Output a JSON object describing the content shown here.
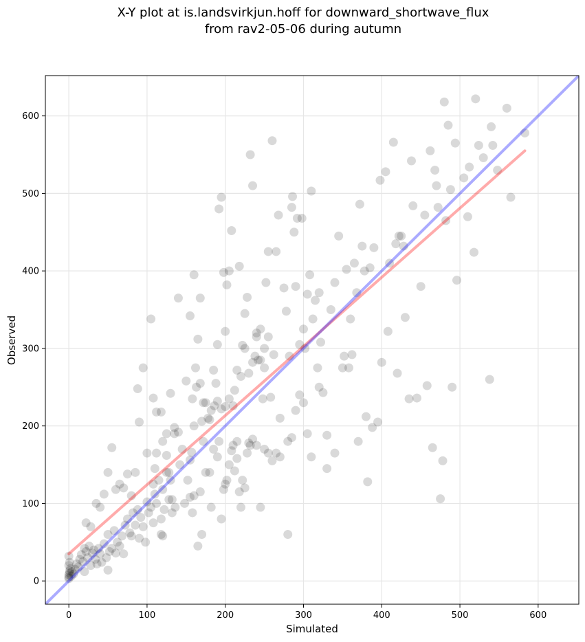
{
  "chart_data": {
    "type": "scatter",
    "title_line1": "X-Y plot at is.landsvirkjun.hoff for downward_shortwave_flux",
    "title_line2": "from rav2-05-06 during autumn",
    "xlabel": "Simulated",
    "ylabel": "Observed",
    "xlim": [
      -30,
      652
    ],
    "ylim": [
      -30,
      652
    ],
    "xticks": [
      0,
      100,
      200,
      300,
      400,
      500,
      600
    ],
    "yticks": [
      0,
      100,
      200,
      300,
      400,
      500,
      600
    ],
    "grid": true,
    "colors": {
      "points": "#000000",
      "fit_line": "#ff0000",
      "identity_line": "#0000ff"
    },
    "identity_line": {
      "x": [
        -30,
        652
      ],
      "y": [
        -30,
        652
      ]
    },
    "fit_line": {
      "x": [
        0,
        583
      ],
      "y": [
        35,
        555
      ]
    },
    "points": [
      [
        0,
        3
      ],
      [
        0,
        5
      ],
      [
        0,
        8
      ],
      [
        1,
        10
      ],
      [
        1,
        13
      ],
      [
        2,
        16
      ],
      [
        0,
        20
      ],
      [
        1,
        24
      ],
      [
        0,
        32
      ],
      [
        3,
        6
      ],
      [
        4,
        12
      ],
      [
        6,
        9
      ],
      [
        8,
        15
      ],
      [
        10,
        22
      ],
      [
        12,
        18
      ],
      [
        14,
        28
      ],
      [
        16,
        34
      ],
      [
        18,
        25
      ],
      [
        20,
        12
      ],
      [
        20,
        42
      ],
      [
        22,
        38
      ],
      [
        24,
        30
      ],
      [
        26,
        45
      ],
      [
        28,
        20
      ],
      [
        30,
        36
      ],
      [
        32,
        40
      ],
      [
        34,
        28
      ],
      [
        36,
        22
      ],
      [
        38,
        42
      ],
      [
        40,
        35
      ],
      [
        42,
        24
      ],
      [
        45,
        48
      ],
      [
        48,
        30
      ],
      [
        50,
        14
      ],
      [
        50,
        60
      ],
      [
        52,
        38
      ],
      [
        55,
        42
      ],
      [
        58,
        65
      ],
      [
        60,
        36
      ],
      [
        62,
        50
      ],
      [
        65,
        45
      ],
      [
        68,
        58
      ],
      [
        70,
        35
      ],
      [
        72,
        72
      ],
      [
        75,
        80
      ],
      [
        78,
        62
      ],
      [
        80,
        58
      ],
      [
        82,
        88
      ],
      [
        85,
        72
      ],
      [
        88,
        92
      ],
      [
        90,
        55
      ],
      [
        92,
        82
      ],
      [
        95,
        70
      ],
      [
        98,
        50
      ],
      [
        100,
        102
      ],
      [
        102,
        88
      ],
      [
        105,
        95
      ],
      [
        108,
        75
      ],
      [
        110,
        112
      ],
      [
        112,
        100
      ],
      [
        115,
        130
      ],
      [
        118,
        80
      ],
      [
        120,
        118
      ],
      [
        122,
        92
      ],
      [
        125,
        140
      ],
      [
        128,
        105
      ],
      [
        130,
        130
      ],
      [
        132,
        88
      ],
      [
        135,
        190
      ],
      [
        140,
        192
      ],
      [
        22,
        75
      ],
      [
        28,
        70
      ],
      [
        35,
        100
      ],
      [
        40,
        95
      ],
      [
        45,
        112
      ],
      [
        50,
        140
      ],
      [
        55,
        172
      ],
      [
        60,
        118
      ],
      [
        65,
        125
      ],
      [
        70,
        120
      ],
      [
        75,
        138
      ],
      [
        80,
        110
      ],
      [
        85,
        140
      ],
      [
        88,
        248
      ],
      [
        90,
        205
      ],
      [
        95,
        275
      ],
      [
        100,
        165
      ],
      [
        105,
        338
      ],
      [
        108,
        236
      ],
      [
        110,
        145
      ],
      [
        112,
        218
      ],
      [
        118,
        218
      ],
      [
        120,
        180
      ],
      [
        125,
        190
      ],
      [
        130,
        242
      ],
      [
        135,
        198
      ],
      [
        140,
        365
      ],
      [
        145,
        170
      ],
      [
        150,
        258
      ],
      [
        155,
        342
      ],
      [
        158,
        235
      ],
      [
        160,
        395
      ],
      [
        162,
        275
      ],
      [
        165,
        312
      ],
      [
        168,
        365
      ],
      [
        170,
        206
      ],
      [
        172,
        180
      ],
      [
        175,
        230
      ],
      [
        180,
        208
      ],
      [
        185,
        272
      ],
      [
        188,
        255
      ],
      [
        190,
        305
      ],
      [
        192,
        480
      ],
      [
        195,
        495
      ],
      [
        198,
        398
      ],
      [
        200,
        322
      ],
      [
        202,
        382
      ],
      [
        205,
        400
      ],
      [
        208,
        452
      ],
      [
        210,
        226
      ],
      [
        212,
        246
      ],
      [
        215,
        272
      ],
      [
        218,
        406
      ],
      [
        220,
        264
      ],
      [
        222,
        304
      ],
      [
        225,
        345
      ],
      [
        228,
        366
      ],
      [
        232,
        550
      ],
      [
        235,
        510
      ],
      [
        238,
        290
      ],
      [
        240,
        315
      ],
      [
        242,
        285
      ],
      [
        245,
        325
      ],
      [
        248,
        235
      ],
      [
        250,
        300
      ],
      [
        252,
        385
      ],
      [
        255,
        425
      ],
      [
        258,
        237
      ],
      [
        260,
        568
      ],
      [
        262,
        292
      ],
      [
        265,
        425
      ],
      [
        268,
        472
      ],
      [
        270,
        210
      ],
      [
        275,
        378
      ],
      [
        278,
        348
      ],
      [
        280,
        180
      ],
      [
        282,
        290
      ],
      [
        285,
        482
      ],
      [
        286,
        496
      ],
      [
        288,
        450
      ],
      [
        290,
        380
      ],
      [
        292,
        468
      ],
      [
        295,
        305
      ],
      [
        298,
        468
      ],
      [
        300,
        325
      ],
      [
        302,
        300
      ],
      [
        305,
        370
      ],
      [
        308,
        395
      ],
      [
        310,
        503
      ],
      [
        312,
        338
      ],
      [
        315,
        362
      ],
      [
        318,
        275
      ],
      [
        320,
        372
      ],
      [
        322,
        308
      ],
      [
        325,
        243
      ],
      [
        330,
        188
      ],
      [
        335,
        350
      ],
      [
        340,
        385
      ],
      [
        345,
        445
      ],
      [
        350,
        275
      ],
      [
        352,
        290
      ],
      [
        355,
        402
      ],
      [
        358,
        275
      ],
      [
        360,
        338
      ],
      [
        362,
        292
      ],
      [
        365,
        410
      ],
      [
        368,
        372
      ],
      [
        370,
        180
      ],
      [
        372,
        486
      ],
      [
        375,
        432
      ],
      [
        378,
        400
      ],
      [
        380,
        212
      ],
      [
        382,
        128
      ],
      [
        385,
        404
      ],
      [
        388,
        198
      ],
      [
        390,
        430
      ],
      [
        395,
        205
      ],
      [
        398,
        517
      ],
      [
        400,
        282
      ],
      [
        405,
        528
      ],
      [
        408,
        322
      ],
      [
        410,
        410
      ],
      [
        415,
        566
      ],
      [
        418,
        435
      ],
      [
        420,
        268
      ],
      [
        422,
        445
      ],
      [
        425,
        445
      ],
      [
        428,
        432
      ],
      [
        430,
        340
      ],
      [
        435,
        235
      ],
      [
        438,
        542
      ],
      [
        440,
        484
      ],
      [
        445,
        236
      ],
      [
        450,
        380
      ],
      [
        455,
        472
      ],
      [
        458,
        252
      ],
      [
        462,
        555
      ],
      [
        465,
        172
      ],
      [
        468,
        530
      ],
      [
        470,
        510
      ],
      [
        472,
        482
      ],
      [
        475,
        106
      ],
      [
        478,
        155
      ],
      [
        480,
        618
      ],
      [
        482,
        465
      ],
      [
        485,
        588
      ],
      [
        488,
        505
      ],
      [
        490,
        250
      ],
      [
        494,
        565
      ],
      [
        496,
        388
      ],
      [
        505,
        520
      ],
      [
        510,
        470
      ],
      [
        512,
        534
      ],
      [
        518,
        424
      ],
      [
        520,
        622
      ],
      [
        524,
        562
      ],
      [
        530,
        546
      ],
      [
        538,
        260
      ],
      [
        540,
        586
      ],
      [
        542,
        562
      ],
      [
        548,
        530
      ],
      [
        560,
        610
      ],
      [
        565,
        495
      ],
      [
        583,
        578
      ],
      [
        155,
        108
      ],
      [
        158,
        88
      ],
      [
        160,
        110
      ],
      [
        165,
        45
      ],
      [
        168,
        115
      ],
      [
        170,
        60
      ],
      [
        175,
        140
      ],
      [
        180,
        140
      ],
      [
        182,
        95
      ],
      [
        185,
        170
      ],
      [
        190,
        160
      ],
      [
        192,
        180
      ],
      [
        195,
        80
      ],
      [
        198,
        118
      ],
      [
        200,
        125
      ],
      [
        202,
        130
      ],
      [
        205,
        150
      ],
      [
        208,
        168
      ],
      [
        210,
        175
      ],
      [
        212,
        142
      ],
      [
        215,
        158
      ],
      [
        218,
        115
      ],
      [
        220,
        95
      ],
      [
        222,
        130
      ],
      [
        225,
        120
      ],
      [
        228,
        165
      ],
      [
        230,
        178
      ],
      [
        232,
        175
      ],
      [
        235,
        183
      ],
      [
        240,
        175
      ],
      [
        245,
        95
      ],
      [
        250,
        170
      ],
      [
        255,
        165
      ],
      [
        260,
        155
      ],
      [
        265,
        165
      ],
      [
        270,
        160
      ],
      [
        280,
        60
      ],
      [
        285,
        185
      ],
      [
        290,
        220
      ],
      [
        295,
        240
      ],
      [
        300,
        230
      ],
      [
        305,
        190
      ],
      [
        310,
        160
      ],
      [
        320,
        250
      ],
      [
        330,
        145
      ],
      [
        340,
        165
      ],
      [
        108,
        125
      ],
      [
        112,
        165
      ],
      [
        118,
        60
      ],
      [
        120,
        58
      ],
      [
        125,
        162
      ],
      [
        128,
        140
      ],
      [
        132,
        105
      ],
      [
        136,
        95
      ],
      [
        142,
        150
      ],
      [
        148,
        100
      ],
      [
        152,
        130
      ],
      [
        155,
        156
      ],
      [
        157,
        166
      ],
      [
        160,
        200
      ],
      [
        163,
        250
      ],
      [
        168,
        255
      ],
      [
        172,
        230
      ],
      [
        178,
        210
      ],
      [
        182,
        220
      ],
      [
        186,
        226
      ],
      [
        190,
        232
      ],
      [
        195,
        222
      ],
      [
        200,
        225
      ],
      [
        205,
        235
      ],
      [
        215,
        180
      ],
      [
        225,
        300
      ],
      [
        230,
        268
      ],
      [
        235,
        282
      ],
      [
        240,
        320
      ],
      [
        245,
        285
      ],
      [
        250,
        275
      ],
      [
        255,
        315
      ]
    ]
  }
}
